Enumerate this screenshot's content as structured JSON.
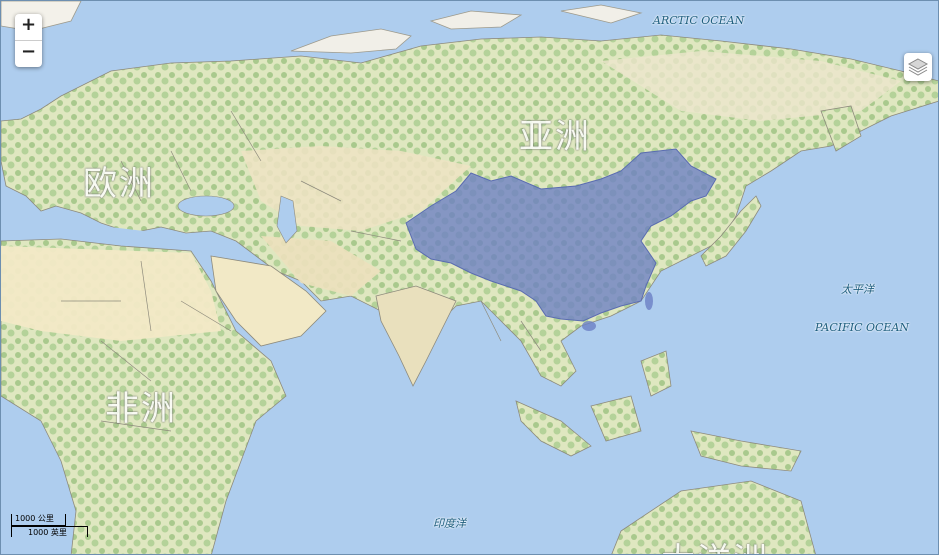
{
  "zoom": {
    "in_label": "+",
    "out_label": "−"
  },
  "labels": {
    "continents": {
      "asia": "亚洲",
      "europe": "欧洲",
      "africa": "非洲",
      "oceania": "大洋洲"
    },
    "oceans": {
      "arctic": "ARCTIC OCEAN",
      "pacific_cn": "太平洋",
      "pacific_en": "PACIFIC OCEAN",
      "indian_cn": "印度洋"
    }
  },
  "scale": {
    "metric": "1000 公里",
    "imperial": "1000 英里"
  },
  "layer_switcher": {
    "icon": "layers-icon"
  },
  "colors": {
    "water": "#a9cbe8",
    "land": "#e9e2c3",
    "vegetation": "#a8c98a",
    "highlight": "#6c7fc4"
  },
  "highlighted_region": "China"
}
